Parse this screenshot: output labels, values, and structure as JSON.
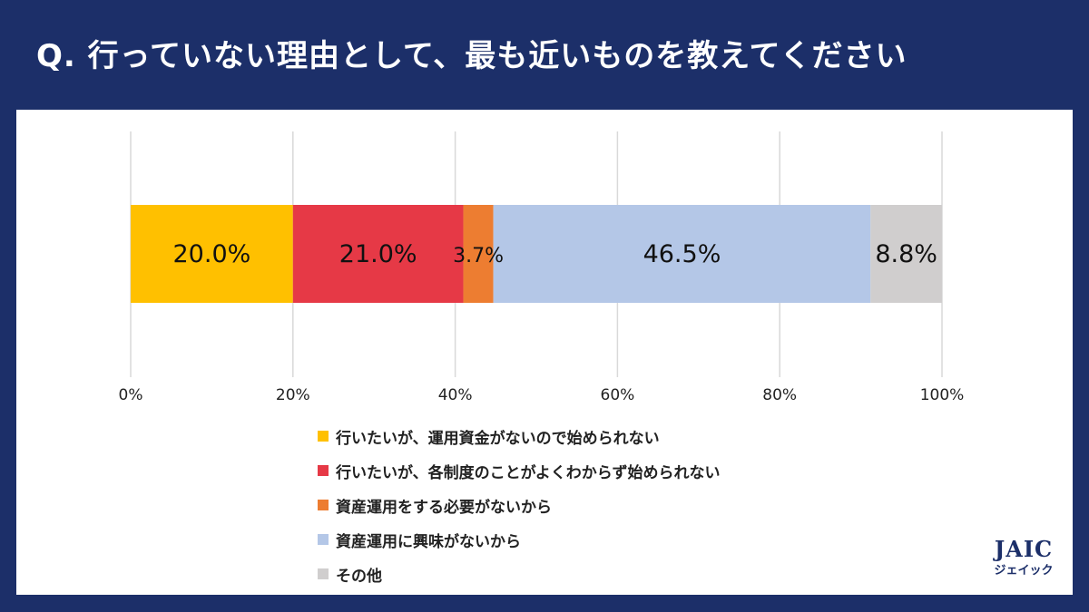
{
  "title": "Q.  行っていない理由として、最も近いものを教えてください",
  "chart_data": {
    "type": "bar",
    "orientation": "horizontal",
    "stacked": true,
    "x_ticks": [
      "0%",
      "20%",
      "40%",
      "60%",
      "80%",
      "100%"
    ],
    "xlim": [
      0,
      100
    ],
    "grid": true,
    "legend_position": "bottom",
    "series": [
      {
        "name": "行いたいが、運用資金がないので始められない",
        "value": 20.0,
        "label": "20.0%",
        "color": "#ffc000"
      },
      {
        "name": "行いたいが、各制度のことがよくわからず始められない",
        "value": 21.0,
        "label": "21.0%",
        "color": "#e63946"
      },
      {
        "name": "資産運用をする必要がないから",
        "value": 3.7,
        "label": "3.7%",
        "color": "#ed7d31"
      },
      {
        "name": "資産運用に興味がないから",
        "value": 46.5,
        "label": "46.5%",
        "color": "#b4c7e7"
      },
      {
        "name": "その他",
        "value": 8.8,
        "label": "8.8%",
        "color": "#d0cece"
      }
    ]
  },
  "logo": {
    "mark": "JAIC",
    "sub": "ジェイック"
  },
  "colors": {
    "header_bg": "#1c2f69",
    "panel_bg": "#ffffff"
  }
}
